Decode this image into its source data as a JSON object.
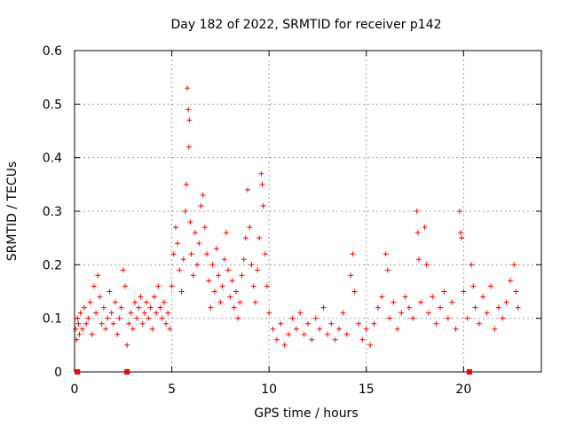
{
  "chart_data": {
    "type": "scatter",
    "title": "Day 182 of 2022, SRMTID for receiver p142",
    "xlabel": "GPS time / hours",
    "ylabel": "SRMTID / TECUs",
    "xlim": [
      0,
      24
    ],
    "ylim": [
      0,
      0.6
    ],
    "x_ticks": [
      0,
      5,
      10,
      15,
      20
    ],
    "y_ticks": [
      0,
      0.1,
      0.2,
      0.3,
      0.4,
      0.5,
      0.6
    ],
    "x_tick_labels": [
      "0",
      "5",
      "10",
      "15",
      "20"
    ],
    "y_tick_labels": [
      "0",
      "0.1",
      "0.2",
      "0.3",
      "0.4",
      "0.5",
      "0.6"
    ],
    "grid": true,
    "marker": "+",
    "color": "#ff0000",
    "series": [
      {
        "name": "SRMTID",
        "points": [
          [
            0.05,
            0.08
          ],
          [
            0.1,
            0.06
          ],
          [
            0.15,
            0.1
          ],
          [
            0.2,
            0.09
          ],
          [
            0.25,
            0.07
          ],
          [
            0.3,
            0.11
          ],
          [
            0.4,
            0.08
          ],
          [
            0.5,
            0.12
          ],
          [
            0.6,
            0.09
          ],
          [
            0.7,
            0.1
          ],
          [
            0.8,
            0.13
          ],
          [
            0.9,
            0.07
          ],
          [
            1.0,
            0.16
          ],
          [
            1.1,
            0.11
          ],
          [
            1.2,
            0.18
          ],
          [
            1.3,
            0.14
          ],
          [
            1.4,
            0.09
          ],
          [
            1.5,
            0.12
          ],
          [
            1.6,
            0.08
          ],
          [
            1.7,
            0.1
          ],
          [
            1.8,
            0.15
          ],
          [
            1.9,
            0.11
          ],
          [
            2.0,
            0.09
          ],
          [
            2.1,
            0.13
          ],
          [
            2.2,
            0.07
          ],
          [
            2.3,
            0.1
          ],
          [
            2.4,
            0.12
          ],
          [
            2.5,
            0.19
          ],
          [
            2.6,
            0.16
          ],
          [
            2.7,
            0.05
          ],
          [
            2.8,
            0.09
          ],
          [
            2.9,
            0.11
          ],
          [
            3.0,
            0.08
          ],
          [
            3.1,
            0.13
          ],
          [
            3.2,
            0.1
          ],
          [
            3.3,
            0.12
          ],
          [
            3.4,
            0.14
          ],
          [
            3.5,
            0.09
          ],
          [
            3.6,
            0.11
          ],
          [
            3.7,
            0.13
          ],
          [
            3.8,
            0.1
          ],
          [
            3.9,
            0.12
          ],
          [
            4.0,
            0.08
          ],
          [
            4.1,
            0.14
          ],
          [
            4.2,
            0.11
          ],
          [
            4.3,
            0.16
          ],
          [
            4.4,
            0.12
          ],
          [
            4.5,
            0.1
          ],
          [
            4.6,
            0.13
          ],
          [
            4.7,
            0.09
          ],
          [
            4.8,
            0.11
          ],
          [
            4.9,
            0.08
          ],
          [
            5.0,
            0.16
          ],
          [
            5.1,
            0.22
          ],
          [
            5.2,
            0.27
          ],
          [
            5.3,
            0.24
          ],
          [
            5.4,
            0.19
          ],
          [
            5.5,
            0.15
          ],
          [
            5.6,
            0.21
          ],
          [
            5.7,
            0.3
          ],
          [
            5.75,
            0.35
          ],
          [
            5.8,
            0.53
          ],
          [
            5.85,
            0.49
          ],
          [
            5.88,
            0.42
          ],
          [
            5.9,
            0.47
          ],
          [
            5.95,
            0.28
          ],
          [
            6.0,
            0.22
          ],
          [
            6.1,
            0.18
          ],
          [
            6.2,
            0.26
          ],
          [
            6.3,
            0.2
          ],
          [
            6.4,
            0.24
          ],
          [
            6.5,
            0.31
          ],
          [
            6.6,
            0.33
          ],
          [
            6.7,
            0.27
          ],
          [
            6.8,
            0.22
          ],
          [
            6.9,
            0.17
          ],
          [
            7.0,
            0.12
          ],
          [
            7.1,
            0.2
          ],
          [
            7.2,
            0.15
          ],
          [
            7.3,
            0.23
          ],
          [
            7.4,
            0.18
          ],
          [
            7.5,
            0.13
          ],
          [
            7.6,
            0.16
          ],
          [
            7.7,
            0.21
          ],
          [
            7.8,
            0.26
          ],
          [
            7.9,
            0.19
          ],
          [
            8.0,
            0.14
          ],
          [
            8.1,
            0.17
          ],
          [
            8.2,
            0.12
          ],
          [
            8.3,
            0.15
          ],
          [
            8.4,
            0.1
          ],
          [
            8.5,
            0.13
          ],
          [
            8.6,
            0.18
          ],
          [
            8.7,
            0.21
          ],
          [
            8.8,
            0.25
          ],
          [
            8.9,
            0.34
          ],
          [
            9.0,
            0.27
          ],
          [
            9.1,
            0.2
          ],
          [
            9.2,
            0.16
          ],
          [
            9.3,
            0.13
          ],
          [
            9.4,
            0.19
          ],
          [
            9.5,
            0.25
          ],
          [
            9.6,
            0.37
          ],
          [
            9.65,
            0.35
          ],
          [
            9.7,
            0.31
          ],
          [
            9.8,
            0.22
          ],
          [
            9.9,
            0.16
          ],
          [
            10.0,
            0.11
          ],
          [
            10.2,
            0.08
          ],
          [
            10.4,
            0.06
          ],
          [
            10.6,
            0.09
          ],
          [
            10.8,
            0.05
          ],
          [
            11.0,
            0.07
          ],
          [
            11.2,
            0.1
          ],
          [
            11.4,
            0.08
          ],
          [
            11.6,
            0.11
          ],
          [
            11.8,
            0.07
          ],
          [
            12.0,
            0.09
          ],
          [
            12.2,
            0.06
          ],
          [
            12.4,
            0.1
          ],
          [
            12.6,
            0.08
          ],
          [
            12.8,
            0.12
          ],
          [
            13.0,
            0.07
          ],
          [
            13.2,
            0.09
          ],
          [
            13.4,
            0.06
          ],
          [
            13.6,
            0.08
          ],
          [
            13.8,
            0.11
          ],
          [
            14.0,
            0.07
          ],
          [
            14.2,
            0.18
          ],
          [
            14.3,
            0.22
          ],
          [
            14.4,
            0.15
          ],
          [
            14.6,
            0.09
          ],
          [
            14.8,
            0.06
          ],
          [
            15.0,
            0.08
          ],
          [
            15.2,
            0.05
          ],
          [
            15.4,
            0.09
          ],
          [
            15.6,
            0.12
          ],
          [
            15.8,
            0.14
          ],
          [
            16.0,
            0.22
          ],
          [
            16.1,
            0.19
          ],
          [
            16.2,
            0.1
          ],
          [
            16.4,
            0.13
          ],
          [
            16.6,
            0.08
          ],
          [
            16.8,
            0.11
          ],
          [
            17.0,
            0.14
          ],
          [
            17.2,
            0.12
          ],
          [
            17.4,
            0.1
          ],
          [
            17.6,
            0.3
          ],
          [
            17.65,
            0.26
          ],
          [
            17.7,
            0.21
          ],
          [
            17.8,
            0.13
          ],
          [
            18.0,
            0.27
          ],
          [
            18.1,
            0.2
          ],
          [
            18.2,
            0.11
          ],
          [
            18.4,
            0.14
          ],
          [
            18.6,
            0.09
          ],
          [
            18.8,
            0.12
          ],
          [
            19.0,
            0.15
          ],
          [
            19.2,
            0.1
          ],
          [
            19.4,
            0.13
          ],
          [
            19.6,
            0.08
          ],
          [
            19.8,
            0.3
          ],
          [
            19.85,
            0.26
          ],
          [
            19.9,
            0.25
          ],
          [
            20.0,
            0.15
          ],
          [
            20.2,
            0.1
          ],
          [
            20.4,
            0.2
          ],
          [
            20.5,
            0.16
          ],
          [
            20.6,
            0.12
          ],
          [
            20.8,
            0.09
          ],
          [
            21.0,
            0.14
          ],
          [
            21.2,
            0.11
          ],
          [
            21.4,
            0.16
          ],
          [
            21.6,
            0.08
          ],
          [
            21.8,
            0.12
          ],
          [
            22.0,
            0.1
          ],
          [
            22.2,
            0.13
          ],
          [
            22.4,
            0.17
          ],
          [
            22.6,
            0.2
          ],
          [
            22.7,
            0.15
          ],
          [
            22.8,
            0.12
          ]
        ]
      }
    ],
    "gap_markers_x": [
      0.15,
      2.7,
      20.3
    ]
  }
}
